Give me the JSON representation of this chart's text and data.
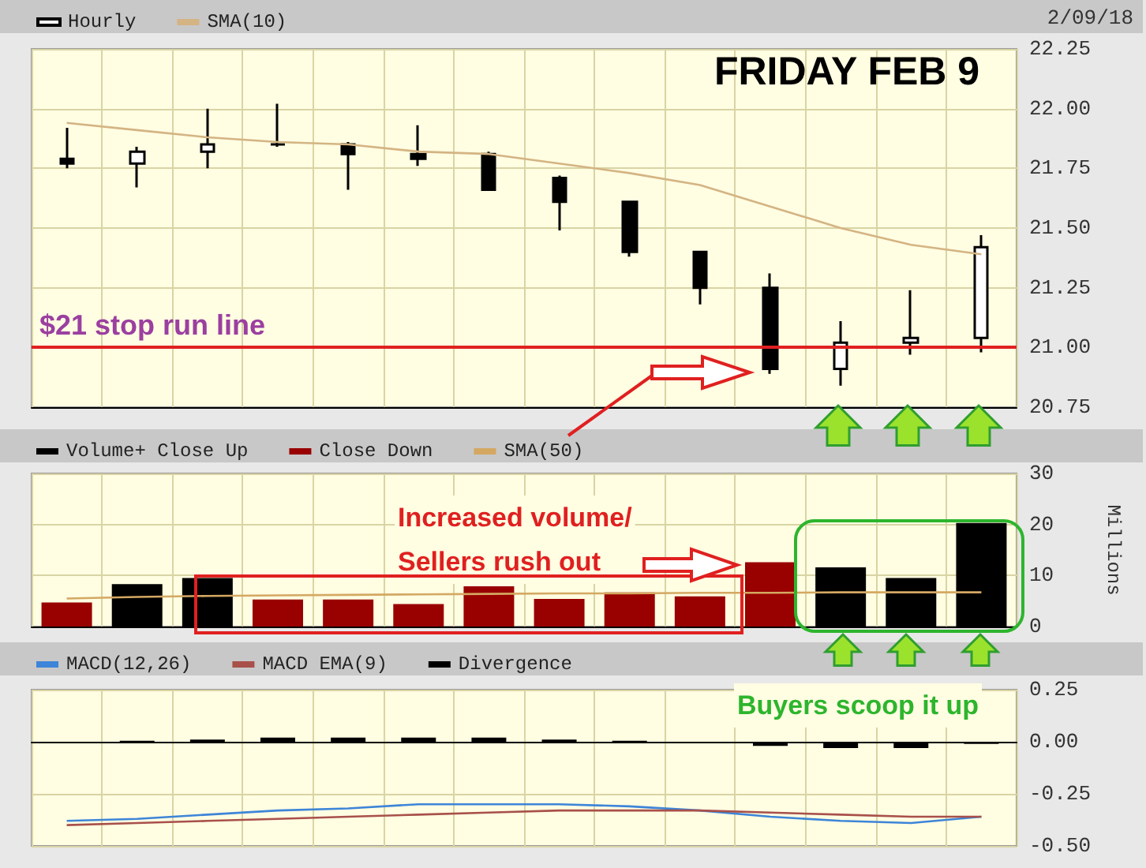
{
  "chart_data": [
    {
      "type": "candlestick",
      "title": "FRIDAY FEB 9",
      "subtitle": "2/09/18",
      "categories": [
        null,
        null,
        null,
        null,
        null,
        null,
        null,
        null,
        null,
        null,
        null,
        null,
        null,
        null
      ],
      "series": [
        {
          "name": "Hourly",
          "type": "candlestick",
          "color": "#000000",
          "ohlc": [
            [
              21.79,
              21.92,
              21.75,
              21.77
            ],
            [
              21.77,
              21.84,
              21.67,
              21.82
            ],
            [
              21.82,
              22.0,
              21.75,
              21.85
            ],
            [
              21.85,
              22.02,
              21.84,
              21.85
            ],
            [
              21.85,
              21.86,
              21.66,
              21.81
            ],
            [
              21.81,
              21.93,
              21.76,
              21.79
            ],
            [
              21.81,
              21.82,
              21.66,
              21.66
            ],
            [
              21.71,
              21.72,
              21.49,
              21.61
            ],
            [
              21.61,
              21.61,
              21.38,
              21.4
            ],
            [
              21.4,
              21.4,
              21.18,
              21.25
            ],
            [
              21.25,
              21.31,
              20.89,
              20.91
            ],
            [
              20.91,
              21.11,
              20.84,
              21.02
            ],
            [
              21.02,
              21.24,
              20.97,
              21.04
            ],
            [
              21.04,
              21.47,
              20.98,
              21.42
            ]
          ]
        },
        {
          "name": "SMA(10)",
          "type": "line",
          "color": "#d4b483",
          "values": [
            21.94,
            21.91,
            21.88,
            21.86,
            21.85,
            21.82,
            21.81,
            21.77,
            21.73,
            21.68,
            21.59,
            21.5,
            21.43,
            21.39
          ]
        }
      ],
      "ylim": [
        20.75,
        22.25
      ],
      "yticks": [
        {
          "value": 20.75,
          "label": "20.75"
        },
        {
          "value": 21,
          "label": "21.00"
        },
        {
          "value": 21.25,
          "label": "21.25"
        },
        {
          "value": 21.5,
          "label": "21.50"
        },
        {
          "value": 21.75,
          "label": "21.75"
        },
        {
          "value": 22,
          "label": "22.00"
        },
        {
          "value": 22.25,
          "label": "22.25"
        }
      ],
      "ref_lines": [
        {
          "axis": "y",
          "value": 21,
          "label": "$21 stop run line",
          "color": "#e02020"
        }
      ],
      "grid": true,
      "legend": "top left",
      "tick_labels": "y"
    },
    {
      "type": "bar",
      "ylabel": "Millions",
      "categories": [
        null,
        null,
        null,
        null,
        null,
        null,
        null,
        null,
        null,
        null,
        null,
        null,
        null,
        null
      ],
      "stacked": true,
      "series": [
        {
          "name": "Volume+ Close Up",
          "color": "#000000",
          "values": [
            null,
            8.3,
            9.5,
            null,
            null,
            null,
            null,
            null,
            null,
            null,
            null,
            11.6,
            9.5,
            20.3
          ]
        },
        {
          "name": "Close Down",
          "color": "#990000",
          "values": [
            4.7,
            null,
            null,
            5.3,
            5.3,
            4.4,
            7.9,
            5.4,
            6.7,
            5.9,
            12.6,
            null,
            null,
            null
          ]
        },
        {
          "name": "SMA(50)",
          "type": "line",
          "color": "#d4a862",
          "values": [
            5.5,
            5.8,
            6.0,
            6.1,
            6.2,
            6.3,
            6.4,
            6.5,
            6.5,
            6.6,
            6.6,
            6.7,
            6.7,
            6.7
          ]
        }
      ],
      "ylim": [
        0,
        30
      ],
      "yticks": [
        0,
        10,
        20,
        30
      ],
      "annotations": [
        "Increased volume/\nSellers rush out"
      ],
      "grid": true,
      "legend": "top left",
      "tick_labels": "y"
    },
    {
      "type": "line",
      "categories": [
        null,
        null,
        null,
        null,
        null,
        null,
        null,
        null,
        null,
        null,
        null,
        null,
        null,
        null
      ],
      "series": [
        {
          "name": "MACD(12,26)",
          "color": "#3d85d8",
          "values": [
            -0.38,
            -0.37,
            -0.35,
            -0.33,
            -0.32,
            -0.3,
            -0.3,
            -0.3,
            -0.31,
            -0.33,
            -0.36,
            -0.38,
            -0.39,
            -0.36
          ]
        },
        {
          "name": "MACD EMA(9)",
          "color": "#a8504a",
          "values": [
            -0.4,
            -0.39,
            -0.38,
            -0.37,
            -0.36,
            -0.35,
            -0.34,
            -0.33,
            -0.33,
            -0.33,
            -0.34,
            -0.35,
            -0.36,
            -0.36
          ]
        },
        {
          "name": "Divergence",
          "type": "bar",
          "color": "#000000",
          "values": [
            0,
            0.005,
            0.01,
            0.02,
            0.02,
            0.02,
            0.02,
            0.01,
            0.005,
            0,
            -0.02,
            -0.03,
            -0.03,
            -0.01
          ]
        }
      ],
      "ylim": [
        -0.5,
        0.25
      ],
      "yticks": [
        {
          "value": -0.5,
          "label": "-0.50"
        },
        {
          "value": -0.25,
          "label": "-0.25"
        },
        {
          "value": 0,
          "label": "0.00"
        },
        {
          "value": 0.25,
          "label": "0.25"
        }
      ],
      "annotations": [
        "Buyers scoop it up"
      ],
      "grid": true,
      "legend": "top left",
      "tick_labels": "y"
    }
  ]
}
